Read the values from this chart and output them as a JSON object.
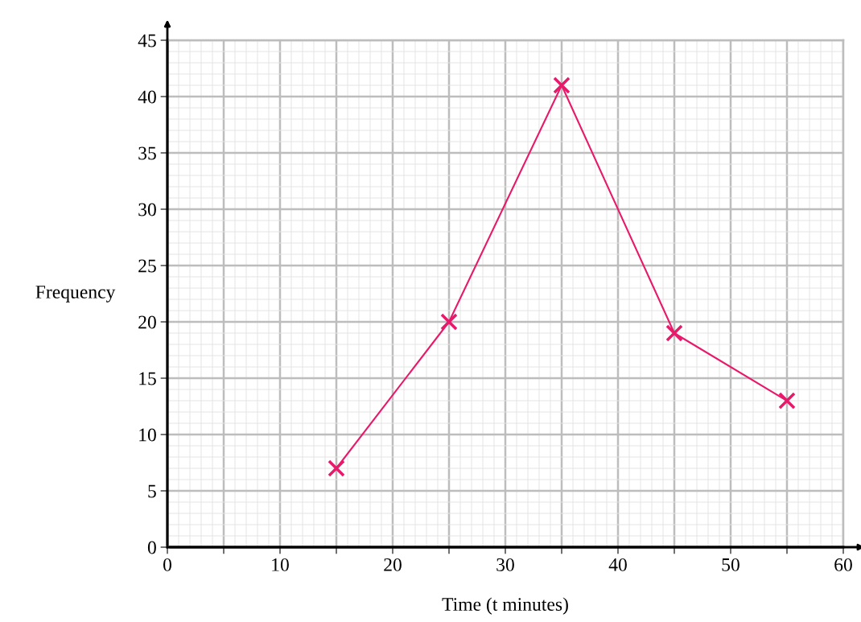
{
  "chart_data": {
    "type": "line",
    "xlabel": "Time (t minutes)",
    "ylabel": "Frequency",
    "x": [
      15,
      25,
      35,
      45,
      55
    ],
    "series": [
      {
        "color": "#e8196a",
        "values": [
          7,
          20,
          41,
          19,
          13
        ]
      }
    ],
    "marker": "cross",
    "line_style": "solid",
    "grid": true,
    "xlim": [
      0,
      60
    ],
    "ylim": [
      0,
      45
    ],
    "xticks": [
      0,
      {
        "value": 5,
        "label": null
      },
      10,
      {
        "value": 15,
        "label": null
      },
      20,
      {
        "value": 25,
        "label": null
      },
      30,
      {
        "value": 35,
        "label": null
      },
      40,
      {
        "value": 45,
        "label": null
      },
      50,
      {
        "value": 55,
        "label": null
      },
      60
    ],
    "yticks": [
      0,
      5,
      10,
      15,
      20,
      25,
      30,
      35,
      40,
      45
    ]
  }
}
